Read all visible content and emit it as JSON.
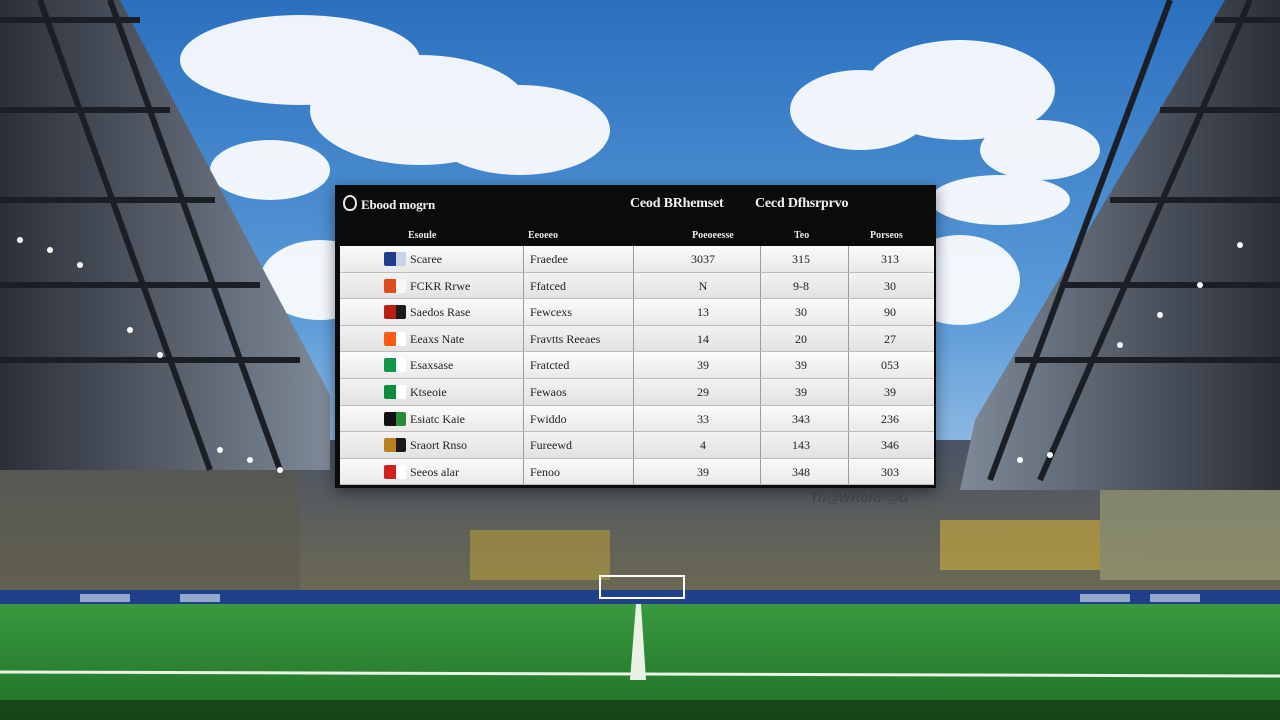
{
  "scoreboard": {
    "brand_title": "Ebood mogrn",
    "header_stat_1": "Ceod BRhemset",
    "header_stat_2": "Cecd Dfhsrprvo",
    "columns": [
      "Esoule",
      "Eeoeeo",
      "Poeoeesse",
      "Teo",
      "Porseos"
    ],
    "rows": [
      {
        "team": "Scaree",
        "flag_colors": [
          "#1f3d8a",
          "#c8d3ea"
        ],
        "pos": "Fraedee",
        "v1": "3037",
        "v2": "315",
        "v3": "313"
      },
      {
        "team": "FCKR Rrwe",
        "flag_colors": [
          "#e04a1f",
          "#f7f7f7"
        ],
        "pos": "Ffatced",
        "v1": "N",
        "v2": "9-8",
        "v3": "30"
      },
      {
        "team": "Saedos Rase",
        "flag_colors": [
          "#b52012",
          "#1b1b1b"
        ],
        "pos": "Fewcexs",
        "v1": "13",
        "v2": "30",
        "v3": "90"
      },
      {
        "team": "Eeaxs Nate",
        "flag_colors": [
          "#ff5a12",
          "#ffffff"
        ],
        "pos": "Fravtts Reeaes",
        "v1": "14",
        "v2": "20",
        "v3": "27"
      },
      {
        "team": "Esaxsase",
        "flag_colors": [
          "#14964a",
          "#ffffff"
        ],
        "pos": "Fratcted",
        "v1": "39",
        "v2": "39",
        "v3": "053"
      },
      {
        "team": "Ktseoie",
        "flag_colors": [
          "#0d8c3e",
          "#ffffff"
        ],
        "pos": "Fewaos",
        "v1": "29",
        "v2": "39",
        "v3": "39"
      },
      {
        "team": "Esiatc Kaie",
        "flag_colors": [
          "#111111",
          "#2a8a3a"
        ],
        "pos": "Fwiddo",
        "v1": "33",
        "v2": "343",
        "v3": "236"
      },
      {
        "team": "Sraort Rnso",
        "flag_colors": [
          "#b8821f",
          "#1a1a1a"
        ],
        "pos": "Fureewd",
        "v1": "4",
        "v2": "143",
        "v3": "346"
      },
      {
        "team": "Seeos alar",
        "flag_colors": [
          "#d21f1f",
          "#ffffff"
        ],
        "pos": "Fenoo",
        "v1": "39",
        "v2": "348",
        "v3": "303"
      }
    ]
  },
  "scene": {
    "sky_color": "#2f79c4",
    "pitch_color": "#2f9a3a",
    "stand_banner_text": "Th@WRoRP@G"
  }
}
